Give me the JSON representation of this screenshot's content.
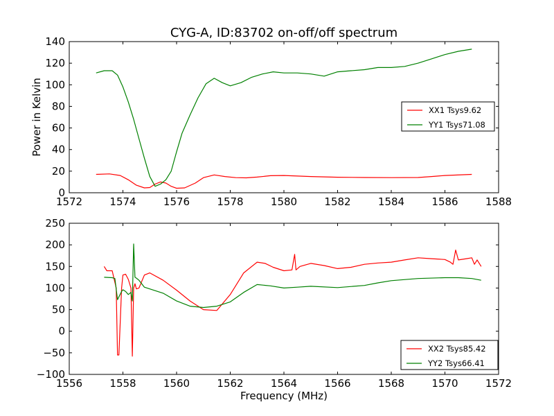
{
  "chart_data": [
    {
      "type": "line",
      "title": "CYG-A, ID:83702 on-off/off spectrum",
      "xlabel": "",
      "ylabel": "Power in Kelvin",
      "xlim": [
        1572,
        1588
      ],
      "ylim": [
        0,
        140
      ],
      "xticks": [
        "1572",
        "1574",
        "1576",
        "1578",
        "1580",
        "1582",
        "1584",
        "1586",
        "1588"
      ],
      "yticks": [
        "0",
        "20",
        "40",
        "60",
        "80",
        "100",
        "120",
        "140"
      ],
      "legend_position": "center-right",
      "grid": false,
      "series": [
        {
          "name": "XX1 Tsys9.62",
          "color": "#ff0000",
          "x": [
            1573.0,
            1573.5,
            1573.9,
            1574.2,
            1574.5,
            1574.8,
            1575.0,
            1575.2,
            1575.4,
            1575.6,
            1575.8,
            1576.0,
            1576.3,
            1576.7,
            1577.0,
            1577.4,
            1577.8,
            1578.2,
            1578.6,
            1579.0,
            1579.5,
            1580.0,
            1580.5,
            1581.0,
            1581.5,
            1582.0,
            1583.0,
            1584.0,
            1585.0,
            1585.5,
            1586.0,
            1587.0
          ],
          "y": [
            17,
            17.5,
            16,
            12,
            7,
            4.5,
            4.8,
            8,
            10,
            9,
            6,
            4.2,
            4.5,
            9,
            14,
            16.5,
            15,
            14,
            13.8,
            14.5,
            15.8,
            16,
            15.5,
            15,
            14.7,
            14.4,
            14.1,
            14.0,
            14.1,
            15,
            16,
            17
          ]
        },
        {
          "name": "YY1 Tsys71.08",
          "color": "#008000",
          "x": [
            1573.0,
            1573.3,
            1573.6,
            1573.8,
            1574.0,
            1574.2,
            1574.4,
            1574.6,
            1574.8,
            1575.0,
            1575.2,
            1575.4,
            1575.6,
            1575.8,
            1576.0,
            1576.2,
            1576.5,
            1576.8,
            1577.1,
            1577.4,
            1577.7,
            1578.0,
            1578.4,
            1578.8,
            1579.2,
            1579.6,
            1580.0,
            1580.5,
            1581.0,
            1581.5,
            1582.0,
            1582.5,
            1583.0,
            1583.5,
            1584.0,
            1584.5,
            1585.0,
            1585.5,
            1586.0,
            1586.5,
            1587.0
          ],
          "y": [
            111,
            113,
            113,
            109,
            98,
            84,
            68,
            50,
            32,
            15,
            6,
            8,
            12,
            20,
            38,
            55,
            72,
            88,
            101,
            106,
            102,
            99,
            102,
            107,
            110,
            112,
            111,
            111,
            110,
            108,
            112,
            113,
            114,
            116,
            116,
            117,
            120,
            124,
            128,
            131,
            133
          ]
        }
      ]
    },
    {
      "type": "line",
      "title": "",
      "xlabel": "Frequency (MHz)",
      "ylabel": "",
      "xlim": [
        1556,
        1572
      ],
      "ylim": [
        -100,
        250
      ],
      "xticks": [
        "1556",
        "1558",
        "1560",
        "1562",
        "1564",
        "1566",
        "1568",
        "1570",
        "1572"
      ],
      "yticks": [
        "−100",
        "−50",
        "0",
        "50",
        "100",
        "150",
        "200",
        "250"
      ],
      "legend_position": "lower-right",
      "grid": false,
      "series": [
        {
          "name": "XX2 Tsys85.42",
          "color": "#ff0000",
          "x": [
            1557.3,
            1557.4,
            1557.6,
            1557.75,
            1557.8,
            1557.85,
            1557.95,
            1558.0,
            1558.1,
            1558.2,
            1558.3,
            1558.35,
            1558.4,
            1558.45,
            1558.5,
            1558.6,
            1558.8,
            1559.0,
            1559.5,
            1560.0,
            1560.5,
            1561.0,
            1561.5,
            1562.0,
            1562.5,
            1563.0,
            1563.3,
            1563.6,
            1564.0,
            1564.3,
            1564.4,
            1564.45,
            1564.6,
            1565.0,
            1565.5,
            1566.0,
            1566.5,
            1567.0,
            1567.5,
            1568.0,
            1568.5,
            1569.0,
            1569.5,
            1570.0,
            1570.2,
            1570.3,
            1570.4,
            1570.5,
            1570.8,
            1571.0,
            1571.1,
            1571.2,
            1571.35
          ],
          "y": [
            150,
            140,
            140,
            100,
            -55,
            -55,
            100,
            130,
            132,
            120,
            100,
            -58,
            100,
            110,
            98,
            100,
            130,
            135,
            118,
            95,
            70,
            50,
            48,
            85,
            135,
            160,
            157,
            148,
            140,
            142,
            178,
            142,
            150,
            157,
            152,
            145,
            148,
            155,
            158,
            160,
            165,
            170,
            168,
            166,
            160,
            155,
            188,
            165,
            168,
            170,
            155,
            165,
            150
          ]
        },
        {
          "name": "YY2 Tsys66.41",
          "color": "#008000",
          "x": [
            1557.3,
            1557.6,
            1557.7,
            1557.8,
            1557.95,
            1558.0,
            1558.1,
            1558.2,
            1558.3,
            1558.35,
            1558.4,
            1558.45,
            1558.5,
            1558.6,
            1558.8,
            1559.5,
            1560.0,
            1560.5,
            1561.0,
            1561.5,
            1562.0,
            1562.5,
            1563.0,
            1563.5,
            1564.0,
            1564.5,
            1565.0,
            1566.0,
            1567.0,
            1567.5,
            1568.0,
            1569.0,
            1570.0,
            1570.5,
            1571.0,
            1571.35
          ],
          "y": [
            125,
            124,
            122,
            73,
            92,
            96,
            92,
            85,
            90,
            70,
            202,
            125,
            123,
            118,
            102,
            88,
            70,
            58,
            55,
            58,
            68,
            90,
            108,
            105,
            100,
            102,
            104,
            101,
            106,
            112,
            117,
            122,
            124,
            124,
            122,
            118
          ]
        }
      ]
    }
  ]
}
